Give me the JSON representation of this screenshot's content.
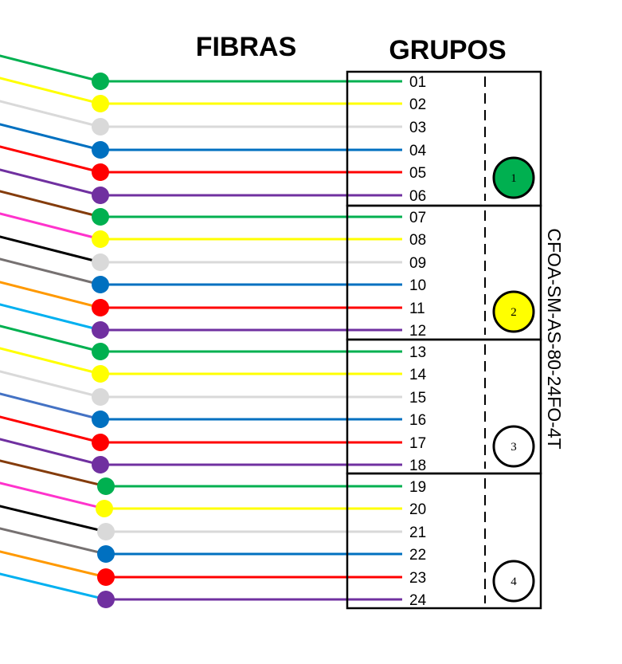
{
  "headings": {
    "fibers": "FIBRAS",
    "groups": "GRUPOS"
  },
  "cable_id": "CFOA-SM-AS-80-24FO-4T",
  "colors": {
    "green": "#00b050",
    "yellow": "#ffff00",
    "white": "#d9d9d9",
    "blue": "#0070c0",
    "red": "#ff0000",
    "violet": "#7030a0",
    "brown": "#843c0c",
    "pink": "#ff33cc",
    "black": "#000000",
    "gray": "#767171",
    "orange": "#ff9900",
    "aqua": "#00b0f0",
    "lightblue": "#4472c4"
  },
  "fibers": [
    {
      "label": "01",
      "color": "green",
      "incoming": "green"
    },
    {
      "label": "02",
      "color": "yellow",
      "incoming": "yellow"
    },
    {
      "label": "03",
      "color": "white",
      "incoming": "white"
    },
    {
      "label": "04",
      "color": "blue",
      "incoming": "blue"
    },
    {
      "label": "05",
      "color": "red",
      "incoming": "red"
    },
    {
      "label": "06",
      "color": "violet",
      "incoming": "violet"
    },
    {
      "label": "07",
      "color": "green",
      "incoming": "brown"
    },
    {
      "label": "08",
      "color": "yellow",
      "incoming": "pink"
    },
    {
      "label": "09",
      "color": "white",
      "incoming": "black"
    },
    {
      "label": "10",
      "color": "blue",
      "incoming": "gray"
    },
    {
      "label": "11",
      "color": "red",
      "incoming": "orange"
    },
    {
      "label": "12",
      "color": "violet",
      "incoming": "aqua"
    },
    {
      "label": "13",
      "color": "green",
      "incoming": "green"
    },
    {
      "label": "14",
      "color": "yellow",
      "incoming": "yellow"
    },
    {
      "label": "15",
      "color": "white",
      "incoming": "white"
    },
    {
      "label": "16",
      "color": "blue",
      "incoming": "lightblue"
    },
    {
      "label": "17",
      "color": "red",
      "incoming": "red"
    },
    {
      "label": "18",
      "color": "violet",
      "incoming": "violet"
    },
    {
      "label": "19",
      "color": "green",
      "incoming": "brown"
    },
    {
      "label": "20",
      "color": "yellow",
      "incoming": "pink"
    },
    {
      "label": "21",
      "color": "white",
      "incoming": "black"
    },
    {
      "label": "22",
      "color": "blue",
      "incoming": "gray"
    },
    {
      "label": "23",
      "color": "red",
      "incoming": "orange"
    },
    {
      "label": "24",
      "color": "violet",
      "incoming": "aqua"
    }
  ],
  "groups": [
    {
      "number": "1",
      "color": "green"
    },
    {
      "number": "2",
      "color": "yellow"
    },
    {
      "number": "3",
      "color": "none"
    },
    {
      "number": "4",
      "color": "none"
    }
  ]
}
